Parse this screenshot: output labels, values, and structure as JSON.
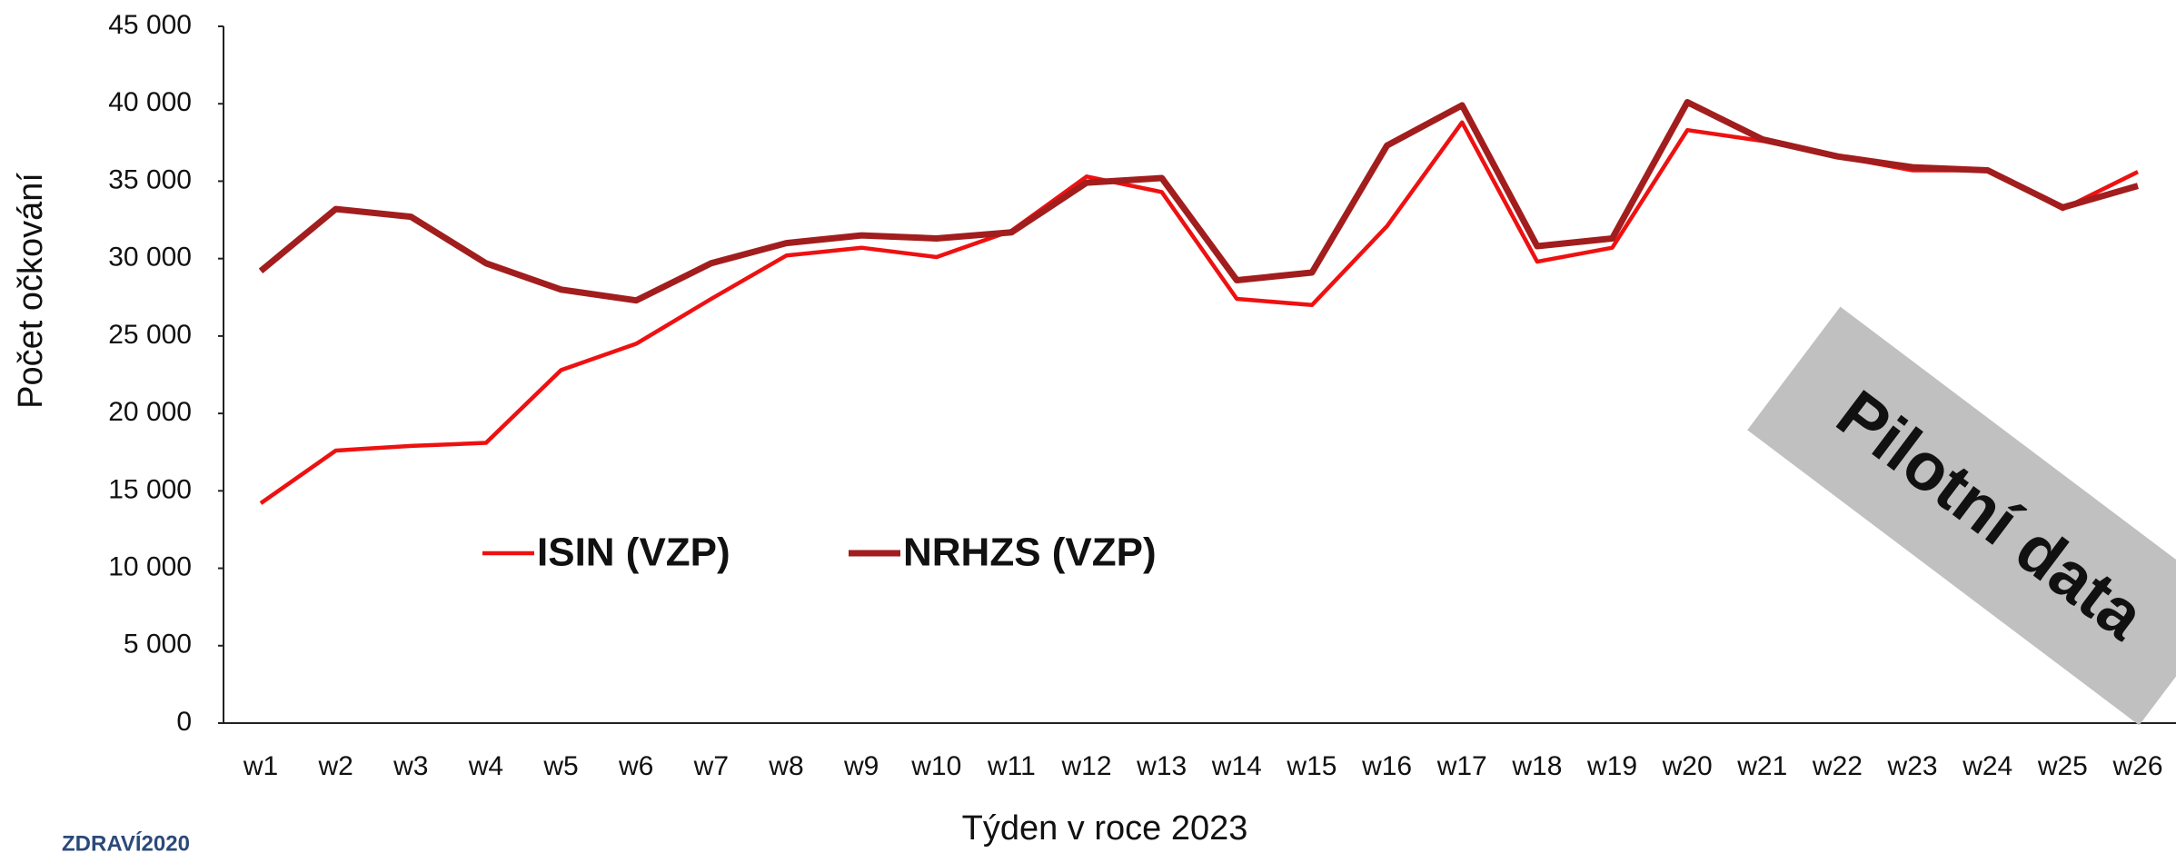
{
  "chart_data": {
    "type": "line",
    "x_label": "Týden v roce 2023",
    "y_label": "Počet očkování",
    "annotation": "Pilotní data",
    "logo": "ZDRAVÍ2020",
    "categories": [
      "w1",
      "w2",
      "w3",
      "w4",
      "w5",
      "w6",
      "w7",
      "w8",
      "w9",
      "w10",
      "w11",
      "w12",
      "w13",
      "w14",
      "w15",
      "w16",
      "w17",
      "w18",
      "w19",
      "w20",
      "w21",
      "w22",
      "w23",
      "w24",
      "w25",
      "w26"
    ],
    "series": [
      {
        "name": "ISIN (VZP)",
        "color": "#ee1111",
        "values": [
          14200,
          17600,
          17900,
          18100,
          22800,
          24500,
          27400,
          30200,
          30700,
          30100,
          31800,
          35300,
          34300,
          27400,
          27000,
          32100,
          38800,
          29800,
          30700,
          38300,
          37600,
          36600,
          35700,
          35700,
          33200,
          35600
        ]
      },
      {
        "name": "NRHZS (VZP)",
        "color": "#a21d1d",
        "values": [
          29200,
          33200,
          32700,
          29700,
          28000,
          27300,
          29700,
          31000,
          31500,
          31300,
          31700,
          34900,
          35200,
          28600,
          29100,
          37300,
          39900,
          30800,
          31300,
          40100,
          37700,
          36600,
          35900,
          35700,
          33300,
          34700
        ]
      }
    ],
    "ylim": [
      0,
      45000
    ],
    "yticks": [
      0,
      {
        "value": 5000,
        "label": "5 000"
      },
      {
        "value": 10000,
        "label": "10 000"
      },
      {
        "value": 15000,
        "label": "15 000"
      },
      {
        "value": 20000,
        "label": "20 000"
      },
      {
        "value": 25000,
        "label": "25 000"
      },
      {
        "value": 30000,
        "label": "30 000"
      },
      {
        "value": 35000,
        "label": "35 000"
      },
      {
        "value": 40000,
        "label": "40 000"
      },
      {
        "value": 45000,
        "label": "45 000"
      }
    ],
    "grid": false
  }
}
